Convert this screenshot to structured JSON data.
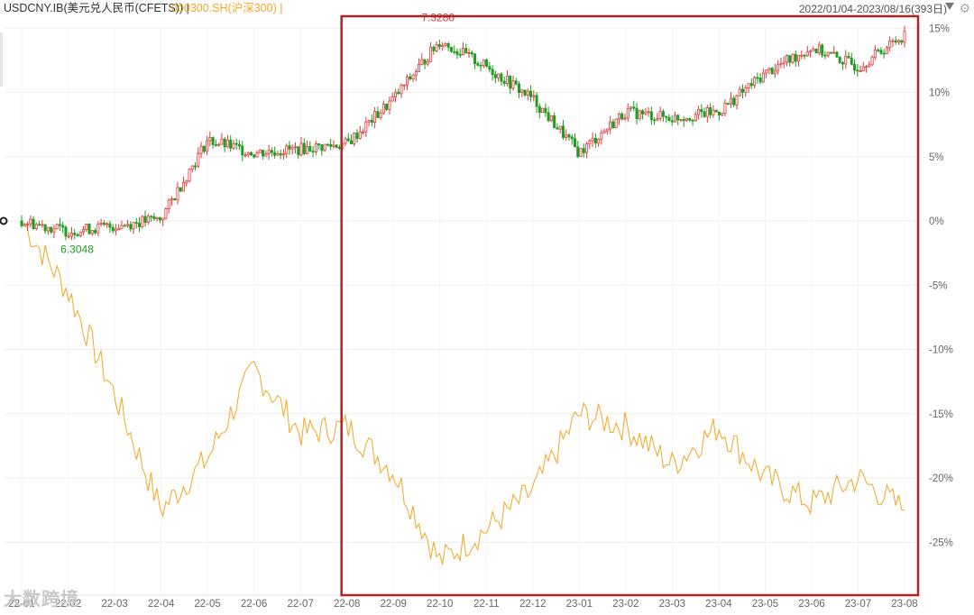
{
  "header": {
    "usd_title": "USDCNY.IB(美元兑人民币(CFETS)) |",
    "csi_title": "000300.SH(沪深300) |",
    "date_range": "2022/01/04-2023/08/16(393日)",
    "gear_icon": "gear-icon",
    "dropdown_icon": "triangle-down-icon"
  },
  "watermark": "大数跨境",
  "chart_data": {
    "type": "line",
    "x": [
      "22-01",
      "22-02",
      "22-03",
      "22-04",
      "22-05",
      "22-06",
      "22-07",
      "22-08",
      "22-09",
      "22-10",
      "22-11",
      "22-12",
      "23-01",
      "23-02",
      "23-03",
      "23-04",
      "23-05",
      "23-06",
      "23-07",
      "23-08"
    ],
    "x_tick_labels": [
      "22-01",
      "22-02",
      "22-03",
      "22-04",
      "22-05",
      "22-06",
      "22-07",
      "22-08",
      "22-09",
      "22-10",
      "22-11",
      "22-12",
      "23-01",
      "23-02",
      "23-03",
      "23-04",
      "23-05",
      "23-06",
      "23-07",
      "23-08"
    ],
    "y_tick_labels": [
      "15%",
      "10%",
      "5%",
      "0%",
      "-5%",
      "-10%",
      "-15%",
      "-20%",
      "-25%"
    ],
    "ylim": [
      -29,
      16
    ],
    "grid": true,
    "series": [
      {
        "name": "USDCNY.IB(美元兑人民币(CFETS))",
        "style": "candlestick",
        "color_up": "#e03c3c",
        "color_down": "#1e9e1e",
        "values": [
          0,
          -0.8,
          -0.4,
          0.2,
          6.3,
          5.3,
          5.6,
          6.0,
          9.5,
          14.0,
          12.0,
          9.5,
          5.3,
          8.5,
          8.0,
          8.5,
          11.5,
          13.5,
          12.0,
          14.5
        ]
      },
      {
        "name": "000300.SH(沪深300)",
        "style": "line",
        "color": "#f5a623",
        "values": [
          0,
          -5.5,
          -13.5,
          -22.5,
          -18.5,
          -11.5,
          -16.5,
          -16.0,
          -19.5,
          -26.5,
          -24.0,
          -21.0,
          -15.0,
          -16.0,
          -19.0,
          -16.0,
          -20.0,
          -22.0,
          -20.0,
          -22.5
        ]
      }
    ],
    "annotations": [
      {
        "text": "7.3280",
        "x": "22-10",
        "y": 15.0,
        "color": "#d9363e"
      },
      {
        "text": "6.3048",
        "x": "22-02",
        "y": -1.1,
        "color": "#1e9e1e"
      }
    ],
    "highlight": {
      "from": "22-08",
      "to": "23-08",
      "color": "#b22222"
    }
  }
}
